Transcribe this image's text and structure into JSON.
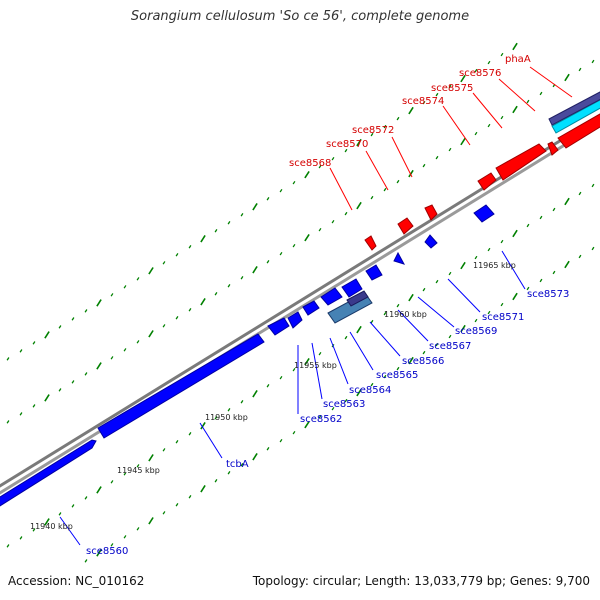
{
  "title": "Sorangium cellulosum 'So ce 56', complete genome",
  "footer": {
    "accession": "Accession: NC_010162",
    "stats": "Topology: circular; Length: 13,033,779 bp; Genes: 9,700"
  },
  "colors": {
    "forward_strand": "#ff0000",
    "reverse_strand": "#0000ff",
    "backbone": "#888888",
    "tick": "#008000",
    "rna_cyan": "#00e0ff",
    "dark_feature": "#3a3a8c",
    "rrna": "#4682b4"
  },
  "scale_labels": [
    "11940 kbp",
    "11945 kbp",
    "11950 kbp",
    "11955 kbp",
    "11960 kbp",
    "11965 kbp"
  ],
  "red_labels": [
    "sce8568",
    "sce8570",
    "sce8572",
    "sce8574",
    "sce8575",
    "sce8576",
    "phaA"
  ],
  "blue_labels": [
    "sce8560",
    "tcbA",
    "sce8562",
    "sce8563",
    "sce8564",
    "sce8565",
    "sce8566",
    "sce8567",
    "sce8569",
    "sce8571",
    "sce8573"
  ]
}
